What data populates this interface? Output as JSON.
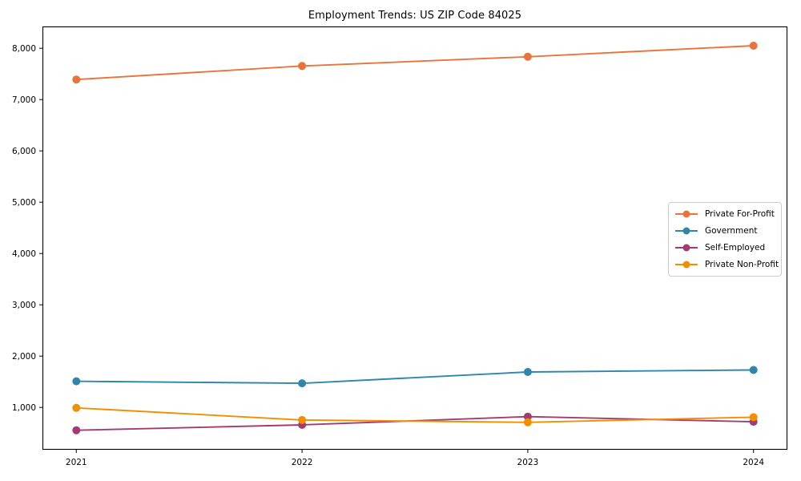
{
  "chart_data": {
    "type": "line",
    "title": "Employment Trends: US ZIP Code 84025",
    "x": [
      2021,
      2022,
      2023,
      2024
    ],
    "xticks": [
      {
        "value": 2021,
        "label": "2021"
      },
      {
        "value": 2022,
        "label": "2022"
      },
      {
        "value": 2023,
        "label": "2023"
      },
      {
        "value": 2024,
        "label": "2024"
      }
    ],
    "yticks": [
      {
        "value": 1000,
        "label": "1,000"
      },
      {
        "value": 2000,
        "label": "2,000"
      },
      {
        "value": 3000,
        "label": "3,000"
      },
      {
        "value": 4000,
        "label": "4,000"
      },
      {
        "value": 5000,
        "label": "5,000"
      },
      {
        "value": 6000,
        "label": "6,000"
      },
      {
        "value": 7000,
        "label": "7,000"
      },
      {
        "value": 8000,
        "label": "8,000"
      }
    ],
    "series": [
      {
        "name": "Private For-Profit",
        "color": "#E8743B",
        "values": [
          7390,
          7655,
          7835,
          8050
        ]
      },
      {
        "name": "Government",
        "color": "#2E86AB",
        "values": [
          1510,
          1470,
          1690,
          1730
        ]
      },
      {
        "name": "Self-Employed",
        "color": "#A23B72",
        "values": [
          555,
          660,
          820,
          720
        ]
      },
      {
        "name": "Private Non-Profit",
        "color": "#F18F01",
        "values": [
          990,
          755,
          710,
          810
        ]
      }
    ],
    "xlim": [
      2020.85,
      2024.15
    ],
    "ylim": [
      175,
      8425
    ],
    "xlabel": "",
    "ylabel": "",
    "grid": false,
    "legend_position": "center right",
    "axes_color": "#000000",
    "background_color": "#ffffff"
  }
}
